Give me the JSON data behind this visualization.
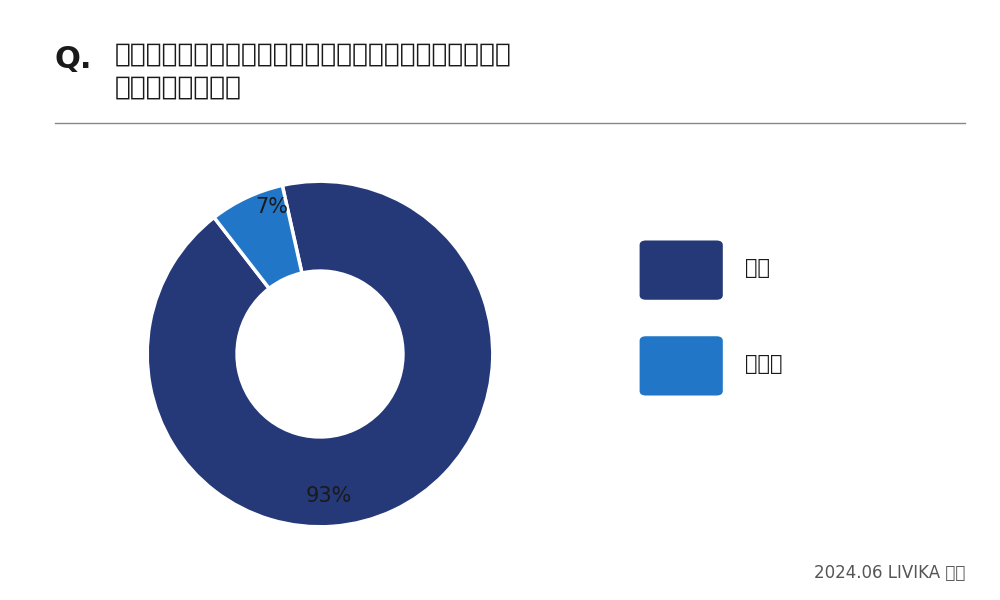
{
  "title_q": "Q.",
  "title_text_line1": "再エネ賦課金（再生可能エネルギー発電促進賦課金）を",
  "title_text_line2": "知っていますか？",
  "slices": [
    93,
    7
  ],
  "colors": [
    "#253878",
    "#2176C8"
  ],
  "pct_labels": [
    "93%",
    "7%"
  ],
  "legend_labels": [
    "はい",
    "いいえ"
  ],
  "footer": "2024.06 LIVIKA 調査",
  "background_color": "#ffffff",
  "title_fontsize": 19,
  "legend_fontsize": 15,
  "pct_fontsize": 15,
  "footer_fontsize": 12
}
